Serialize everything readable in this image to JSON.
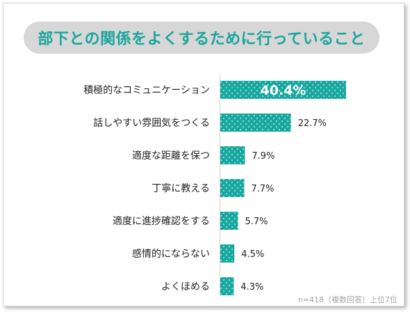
{
  "chart_data": {
    "type": "bar",
    "orientation": "horizontal",
    "title": "部下との関係をよくするために行っていること",
    "categories": [
      "積極的なコミュニケーション",
      "話しやすい雰囲気をつくる",
      "適度な距離を保つ",
      "丁寧に教える",
      "適度に進捗確認をする",
      "感情的にならない",
      "よくほめる"
    ],
    "values": [
      40.4,
      22.7,
      7.9,
      7.7,
      5.7,
      4.5,
      4.3
    ],
    "value_labels": [
      "40.4%",
      "22.7%",
      "7.9%",
      "7.7%",
      "5.7%",
      "4.5%",
      "4.3%"
    ],
    "xlim": [
      0,
      40.4
    ],
    "grid": false,
    "colors": {
      "bar": "#16a89e",
      "dot": "#ffffff",
      "title": "#19a59c",
      "title_bg": "#d7d7d7",
      "label": "#222222",
      "axis": "#cfcfcf"
    }
  },
  "footnote": "n=418（複数回答）上位7位"
}
